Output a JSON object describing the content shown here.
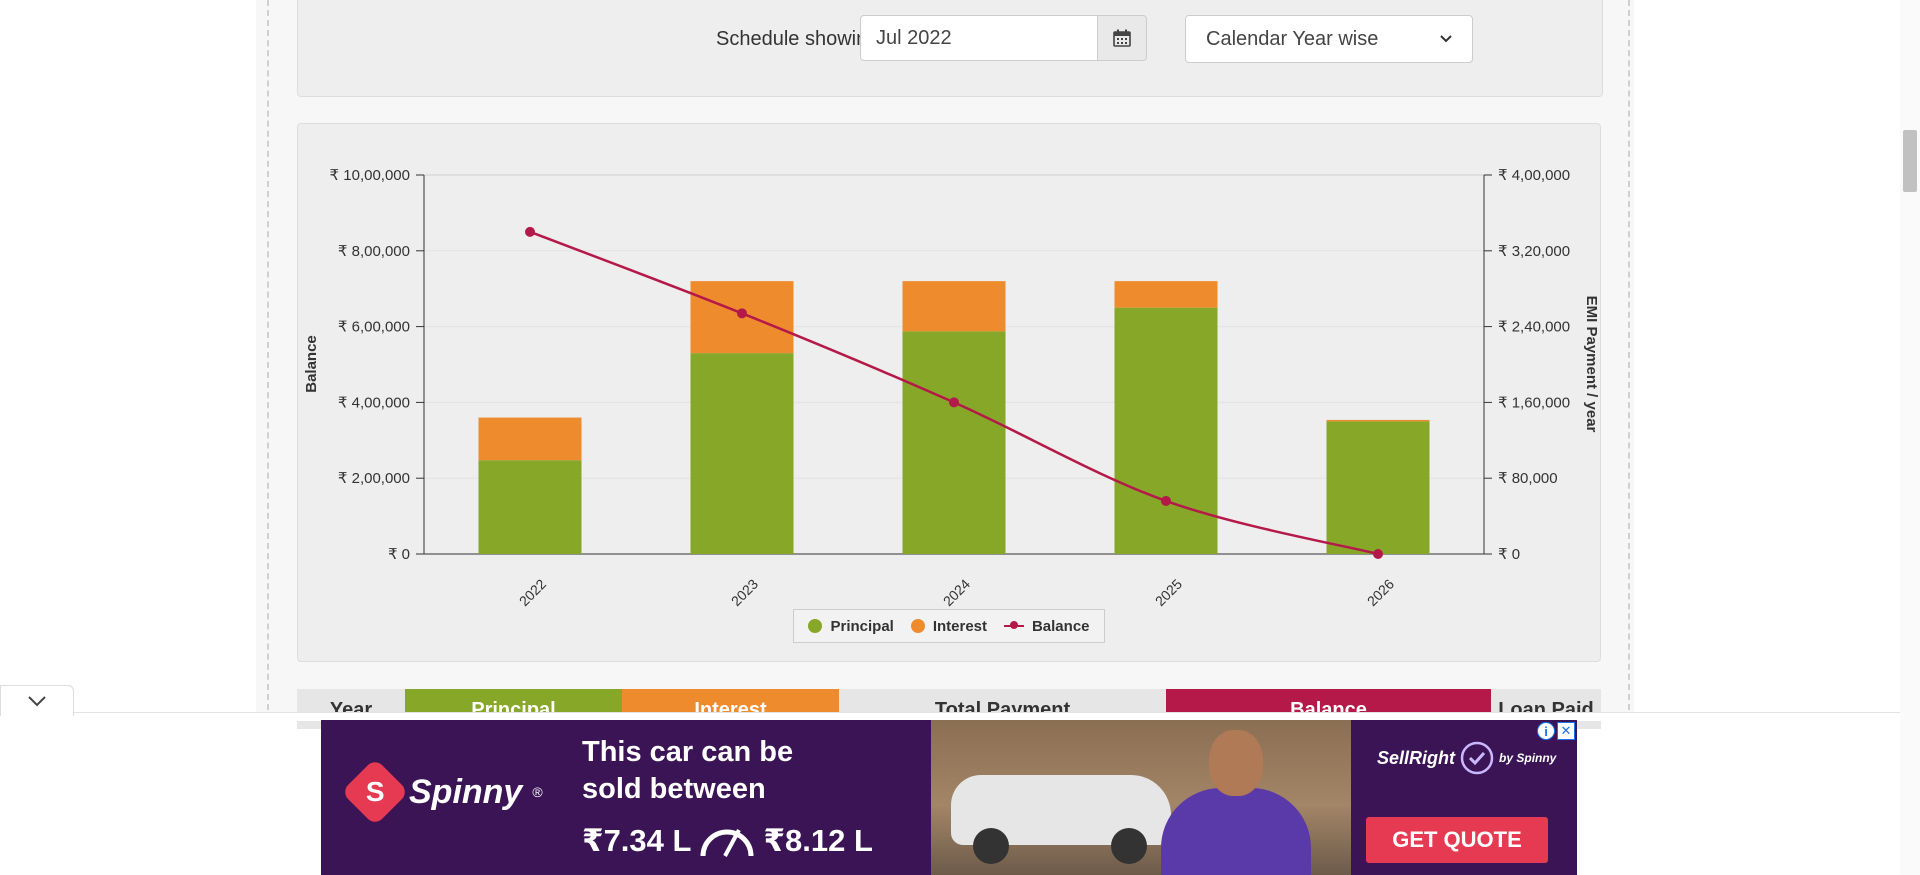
{
  "schedule": {
    "label": "Schedule showing EMI payments starting from",
    "start_date_value": "Jul 2022",
    "view_mode_selected": "Calendar Year wise"
  },
  "colors": {
    "principal": "#86a728",
    "interest": "#ee8c2d",
    "balance": "#b5194a"
  },
  "chart_data": {
    "type": "bar",
    "stacked": true,
    "categories": [
      "2022",
      "2023",
      "2024",
      "2025",
      "2026"
    ],
    "series": [
      {
        "name": "Principal",
        "type": "bar",
        "axis": "right",
        "values": [
          99000,
          212000,
          235000,
          260000,
          140000
        ]
      },
      {
        "name": "Interest",
        "type": "bar",
        "axis": "right",
        "values": [
          45000,
          76000,
          53000,
          28000,
          1500
        ]
      },
      {
        "name": "Balance",
        "type": "line",
        "axis": "left",
        "values": [
          850000,
          635000,
          400000,
          140000,
          0
        ]
      }
    ],
    "left_axis": {
      "label": "Balance",
      "range": [
        0,
        1000000
      ],
      "ticks": [
        0,
        200000,
        400000,
        600000,
        800000,
        1000000
      ],
      "tick_labels": [
        "₹ 0",
        "₹ 2,00,000",
        "₹ 4,00,000",
        "₹ 6,00,000",
        "₹ 8,00,000",
        "₹ 10,00,000"
      ]
    },
    "right_axis": {
      "label": "EMI Payment / year",
      "range": [
        0,
        400000
      ],
      "ticks": [
        0,
        80000,
        160000,
        240000,
        320000,
        400000
      ],
      "tick_labels": [
        "₹ 0",
        "₹ 80,000",
        "₹ 1,60,000",
        "₹ 2,40,000",
        "₹ 3,20,000",
        "₹ 4,00,000"
      ]
    },
    "grid": true,
    "legend": {
      "position": "bottom-center",
      "items": [
        "Principal",
        "Interest",
        "Balance"
      ]
    }
  },
  "table": {
    "headers": [
      "Year",
      "Principal",
      "Interest",
      "Total Payment",
      "Balance",
      "Loan Paid"
    ]
  },
  "ad": {
    "logo_letter": "S",
    "brand": "Spinny",
    "brand_mark": "®",
    "headline_line1": "This car can be",
    "headline_line2": "sold between",
    "price_low": "₹7.34 L",
    "price_high": "₹8.12 L",
    "sellright": "SellRight",
    "by_spinny": "by Spinny",
    "cta": "GET QUOTE",
    "info_symbol": "i",
    "close_symbol": "✕"
  }
}
